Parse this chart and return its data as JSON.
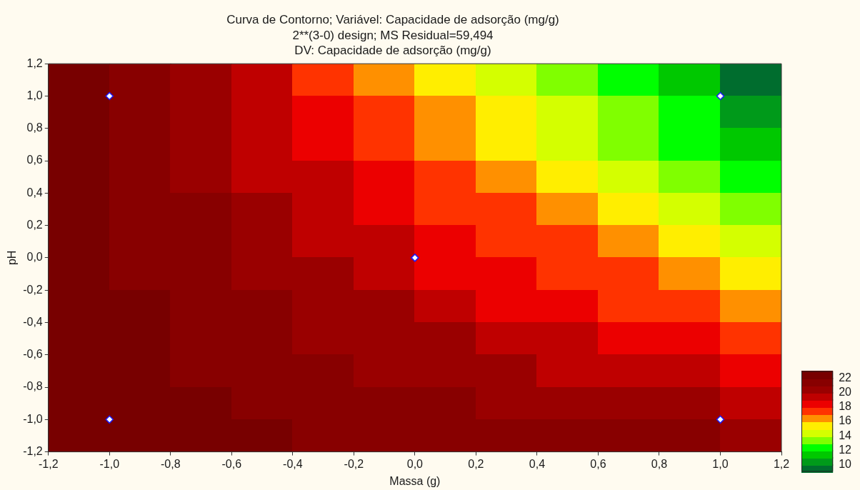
{
  "chart_data": {
    "type": "heatmap",
    "title": "Curva de Contorno; Variável: Capacidade de adsorção (mg/g)",
    "subtitle": "2**(3-0) design; MS Residual=59,494\nDV: Capacidade de adsorção (mg/g)",
    "xlabel": "Massa (g)",
    "ylabel": "pH",
    "x": [
      -1.1,
      -0.9,
      -0.7,
      -0.5,
      -0.3,
      -0.1,
      0.1,
      0.3,
      0.5,
      0.7,
      0.9,
      1.1
    ],
    "y": [
      1.1,
      0.9,
      0.7,
      0.5,
      0.3,
      0.1,
      -0.1,
      -0.3,
      -0.5,
      -0.7,
      -0.9,
      -1.1
    ],
    "cells": [
      [
        22.5,
        21.5,
        20.5,
        19.5,
        17.5,
        16.5,
        15.5,
        14.5,
        13.5,
        12.5,
        11.5,
        9.5
      ],
      [
        22.5,
        21.5,
        20.5,
        19.5,
        18.5,
        17.5,
        16.5,
        15.5,
        14.5,
        13.5,
        12.5,
        10.5
      ],
      [
        22.5,
        21.5,
        20.5,
        19.5,
        18.5,
        17.5,
        16.5,
        15.5,
        14.5,
        13.5,
        12.5,
        11.5
      ],
      [
        22.5,
        21.5,
        20.5,
        19.5,
        19.5,
        18.5,
        17.5,
        16.5,
        15.5,
        14.5,
        13.5,
        12.5
      ],
      [
        22.5,
        21.5,
        21.5,
        20.5,
        19.5,
        18.5,
        17.5,
        17.5,
        16.5,
        15.5,
        14.5,
        13.5
      ],
      [
        22.5,
        21.5,
        21.5,
        20.5,
        19.5,
        19.5,
        18.5,
        17.5,
        17.5,
        16.5,
        15.5,
        14.5
      ],
      [
        22.5,
        21.5,
        21.5,
        20.5,
        20.5,
        19.5,
        18.5,
        18.5,
        17.5,
        17.5,
        16.5,
        15.5
      ],
      [
        22.5,
        22.5,
        21.5,
        21.5,
        20.5,
        20.5,
        19.5,
        18.5,
        18.5,
        17.5,
        17.5,
        16.5
      ],
      [
        22.5,
        22.5,
        21.5,
        21.5,
        20.5,
        20.5,
        20.5,
        19.5,
        19.5,
        18.5,
        18.5,
        17.5
      ],
      [
        22.5,
        22.5,
        21.5,
        21.5,
        21.5,
        20.5,
        20.5,
        20.5,
        19.5,
        19.5,
        19.5,
        18.5
      ],
      [
        22.5,
        22.5,
        22.5,
        21.5,
        21.5,
        21.5,
        21.5,
        20.5,
        20.5,
        20.5,
        20.5,
        19.5
      ],
      [
        22.5,
        22.5,
        22.5,
        22.5,
        21.5,
        21.5,
        21.5,
        21.5,
        21.5,
        21.5,
        21.5,
        20.5
      ]
    ],
    "colors": [
      "#006d2e",
      "#009a1a",
      "#00c800",
      "#00ff00",
      "#80ff00",
      "#d4ff00",
      "#ffee00",
      "#ff9000",
      "#ff3300",
      "#ec0000",
      "#bf0000",
      "#9a0000",
      "#880000",
      "#780000"
    ],
    "clim": [
      9,
      23
    ],
    "cticks": [
      22,
      20,
      18,
      16,
      14,
      12,
      10
    ],
    "series": [
      {
        "type": "scatter",
        "x": [
          -1,
          1,
          0,
          -1,
          1
        ],
        "values": [
          1,
          1,
          0,
          -1,
          -1
        ],
        "color": "#ffffff",
        "marker": "diamond"
      }
    ],
    "xlim": [
      -1.2,
      1.2
    ],
    "ylim": [
      -1.2,
      1.2
    ],
    "xticks": [
      {
        "value": -1.2,
        "label": "-1,2"
      },
      {
        "value": -1,
        "label": "-1,0"
      },
      {
        "value": -0.8,
        "label": "-0,8"
      },
      {
        "value": -0.6,
        "label": "-0,6"
      },
      {
        "value": -0.4,
        "label": "-0,4"
      },
      {
        "value": -0.2,
        "label": "-0,2"
      },
      {
        "value": 0,
        "label": "0,0"
      },
      {
        "value": 0.2,
        "label": "0,2"
      },
      {
        "value": 0.4,
        "label": "0,4"
      },
      {
        "value": 0.6,
        "label": "0,6"
      },
      {
        "value": 0.8,
        "label": "0,8"
      },
      {
        "value": 1,
        "label": "1,0"
      },
      {
        "value": 1.2,
        "label": "1,2"
      }
    ],
    "yticks": [
      {
        "value": -1.2,
        "label": "-1,2"
      },
      {
        "value": -1,
        "label": "-1,0"
      },
      {
        "value": -0.8,
        "label": "-0,8"
      },
      {
        "value": -0.6,
        "label": "-0,6"
      },
      {
        "value": -0.4,
        "label": "-0,4"
      },
      {
        "value": -0.2,
        "label": "-0,2"
      },
      {
        "value": 0,
        "label": "0,0"
      },
      {
        "value": 0.2,
        "label": "0,2"
      },
      {
        "value": 0.4,
        "label": "0,4"
      },
      {
        "value": 0.6,
        "label": "0,6"
      },
      {
        "value": 0.8,
        "label": "0,8"
      },
      {
        "value": 1,
        "label": "1,0"
      },
      {
        "value": 1.2,
        "label": "1,2"
      }
    ],
    "grid": false
  }
}
